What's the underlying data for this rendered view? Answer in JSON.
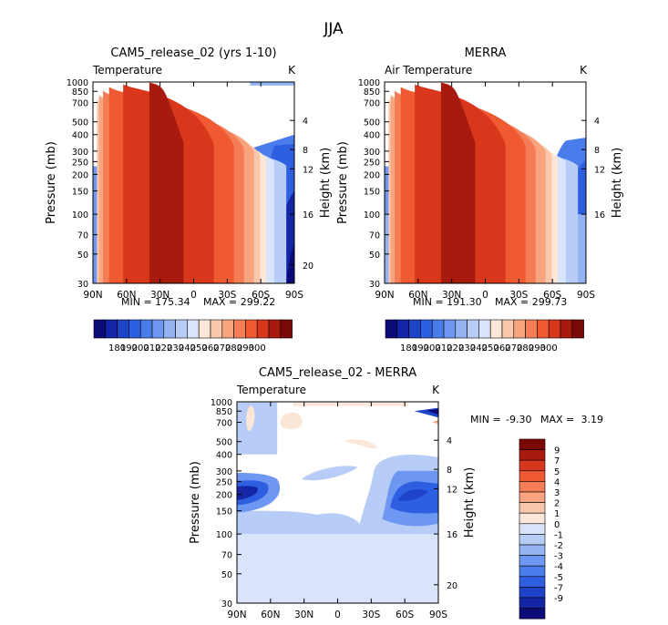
{
  "figure_title": "JJA",
  "colors": {
    "temp_scale": [
      "#0b0b7a",
      "#1426a6",
      "#1f43c8",
      "#2e5fe0",
      "#4a7ceb",
      "#6d97f0",
      "#93b3f3",
      "#b7cdf7",
      "#d9e4fa",
      "#fbe6d8",
      "#f9c7ac",
      "#f7a47f",
      "#f57d55",
      "#ef5a33",
      "#d8371c",
      "#a8190e",
      "#7a0906"
    ],
    "diff_scale": [
      "#0b0b7a",
      "#1426a6",
      "#1f43c8",
      "#2e5fe0",
      "#4a7ceb",
      "#6d97f0",
      "#93b3f3",
      "#b7cdf7",
      "#d9e4fa",
      "#fbe6d8",
      "#f9c7ac",
      "#f7a47f",
      "#f57d55",
      "#ef5a33",
      "#d8371c",
      "#a8190e",
      "#7a0906"
    ]
  },
  "chart_data": [
    {
      "type": "heatmap",
      "title": "CAM5_release_02 (yrs 1-10)",
      "left_label": "Temperature",
      "right_label": "K",
      "ylabel": "Pressure (mb)",
      "y2label": "Height (km)",
      "x_ticks": [
        "90N",
        "60N",
        "30N",
        "0",
        "30S",
        "60S",
        "90S"
      ],
      "y_ticks": [
        "30",
        "50",
        "70",
        "100",
        "150",
        "200",
        "250",
        "300",
        "400",
        "500",
        "700",
        "850",
        "1000"
      ],
      "y2_ticks": [
        "20",
        "16",
        "12",
        "8",
        "4"
      ],
      "min_text": "MIN = 175.34",
      "max_text": "MAX = 299.22",
      "min": 175.34,
      "max": 299.22,
      "ylim": [
        1000,
        30
      ],
      "colorbar_labels": [
        "180",
        "190",
        "200",
        "210",
        "220",
        "230",
        "240",
        "250",
        "260",
        "270",
        "280",
        "290",
        "300"
      ]
    },
    {
      "type": "heatmap",
      "title": "MERRA",
      "left_label": "Air Temperature",
      "right_label": "K",
      "ylabel": "Pressure (mb)",
      "y2label": "Height (km)",
      "x_ticks": [
        "90N",
        "60N",
        "30N",
        "0",
        "30S",
        "60S",
        "90S"
      ],
      "y_ticks": [
        "30",
        "50",
        "70",
        "100",
        "150",
        "200",
        "250",
        "300",
        "400",
        "500",
        "700",
        "850",
        "1000"
      ],
      "y2_ticks": [
        "16",
        "12",
        "8",
        "4"
      ],
      "min_text": "MIN = 191.30",
      "max_text": "MAX = 299.73",
      "min": 191.3,
      "max": 299.73,
      "ylim": [
        1000,
        30
      ],
      "data_top_mb": 100,
      "colorbar_labels": [
        "180",
        "190",
        "200",
        "210",
        "220",
        "230",
        "240",
        "250",
        "260",
        "270",
        "280",
        "290",
        "300"
      ]
    },
    {
      "type": "heatmap",
      "title": "CAM5_release_02 - MERRA",
      "left_label": "Temperature",
      "right_label": "K",
      "ylabel": "Pressure (mb)",
      "y2label": "Height (km)",
      "x_ticks": [
        "90N",
        "60N",
        "30N",
        "0",
        "30S",
        "60S",
        "90S"
      ],
      "y_ticks": [
        "30",
        "50",
        "70",
        "100",
        "150",
        "200",
        "250",
        "300",
        "400",
        "500",
        "700",
        "850",
        "1000"
      ],
      "y2_ticks": [
        "20",
        "16",
        "12",
        "8",
        "4"
      ],
      "min_label": "MIN =",
      "min_value": "-9.30",
      "max_label": "MAX =",
      "max_value": "3.19",
      "min": -9.3,
      "max": 3.19,
      "ylim": [
        1000,
        30
      ],
      "data_top_mb": 100,
      "colorbar_labels": [
        "9",
        "7",
        "5",
        "4",
        "3",
        "2",
        "1",
        "0",
        "-1",
        "-2",
        "-3",
        "-4",
        "-5",
        "-7",
        "-9"
      ]
    }
  ]
}
